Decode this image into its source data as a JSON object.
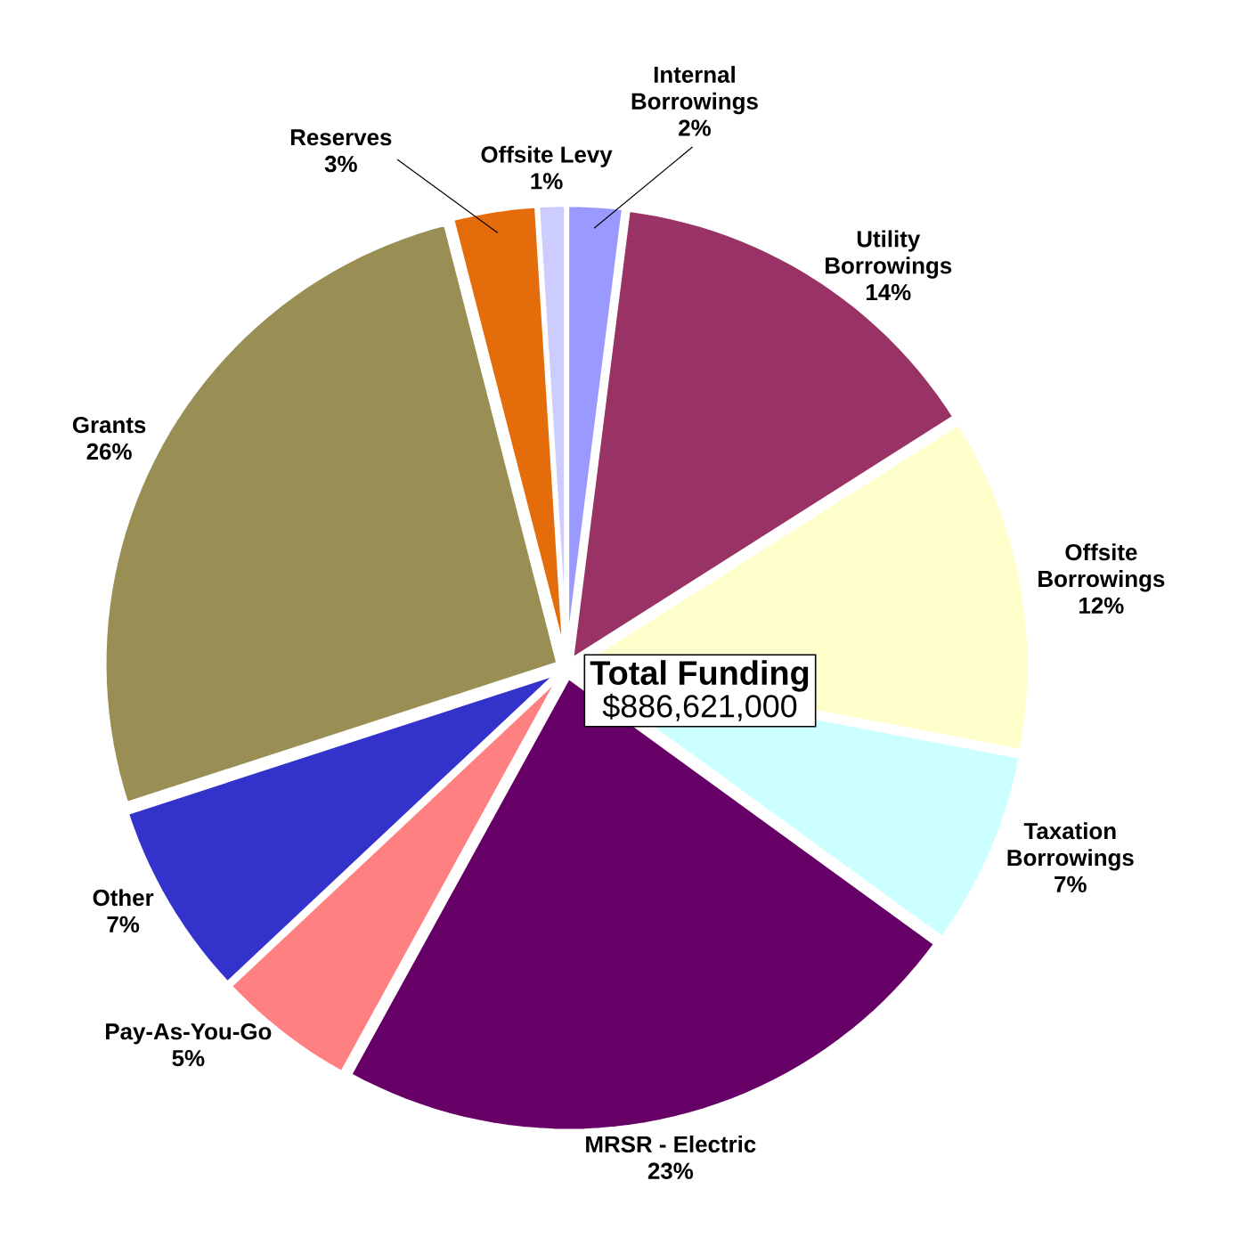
{
  "chart_data": {
    "type": "pie",
    "categories": [
      "Internal Borrowings",
      "Utility Borrowings",
      "Offsite Borrowings",
      "Taxation Borrowings",
      "MRSR - Electric",
      "Pay-As-You-Go",
      "Other",
      "Grants",
      "Reserves",
      "Offsite Levy"
    ],
    "values": [
      2,
      14,
      12,
      7,
      23,
      5,
      7,
      26,
      3,
      1
    ],
    "value_labels": [
      "2%",
      "14%",
      "12%",
      "7%",
      "23%",
      "5%",
      "7%",
      "26%",
      "3%",
      "1%"
    ],
    "colors": [
      "#9999ff",
      "#993366",
      "#ffffcc",
      "#ccffff",
      "#660066",
      "#ff8080",
      "#3333cc",
      "#998f55",
      "#e46c0a",
      "#ccccff"
    ],
    "annotations": [
      "Total Funding",
      "$886,621,000"
    ]
  }
}
